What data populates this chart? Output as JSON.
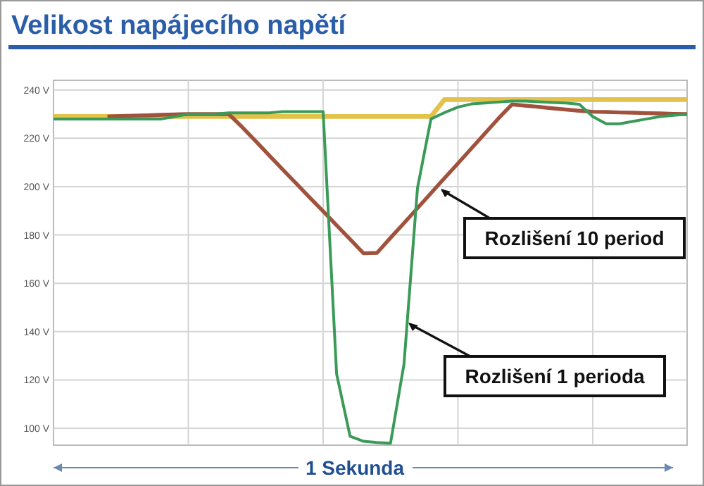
{
  "chart_data": {
    "type": "line",
    "title": "Velikost napájecího napětí",
    "xlabel": "1 Sekunda",
    "categories": [
      null,
      null,
      null,
      null,
      null,
      null,
      null,
      null,
      null,
      null,
      null,
      null,
      null,
      null,
      null,
      null,
      null,
      null,
      null,
      null,
      null,
      null,
      null,
      null,
      null,
      null,
      null,
      null,
      null,
      null,
      null,
      null,
      null,
      null,
      null,
      null,
      null,
      null,
      null,
      null,
      null,
      null,
      null,
      null,
      null,
      null,
      null,
      null
    ],
    "ylim": [
      93,
      244
    ],
    "yticks": [
      {
        "value": 100,
        "label": "100 V"
      },
      {
        "value": 120,
        "label": "120 V"
      },
      {
        "value": 140,
        "label": "140 V"
      },
      {
        "value": 160,
        "label": "160 V"
      },
      {
        "value": 180,
        "label": "180 V"
      },
      {
        "value": 200,
        "label": "200 V"
      },
      {
        "value": 220,
        "label": "220 V"
      },
      {
        "value": 240,
        "label": "240 V"
      }
    ],
    "tick_labels": "y",
    "grid": true,
    "marker": "none",
    "line_style": "solid",
    "series": [
      {
        "color": "#e2c24a",
        "values": [
          229,
          229,
          229,
          229,
          229,
          229,
          229,
          229,
          229,
          229,
          229,
          229,
          229,
          229,
          229,
          229,
          229,
          229,
          229,
          229,
          229,
          229,
          229,
          229,
          229,
          229,
          229,
          229,
          229,
          236,
          236,
          236,
          236,
          236,
          236,
          236,
          236,
          236,
          236,
          236,
          236,
          236,
          236,
          236,
          236,
          236,
          236,
          236
        ]
      },
      {
        "color": "#a0523c",
        "values": [
          null,
          null,
          null,
          null,
          229,
          229.2,
          229.4,
          229.5,
          229.7,
          229.9,
          230,
          230,
          230,
          230,
          224.6,
          218.8,
          212.9,
          207.1,
          201.3,
          195.5,
          189.8,
          184,
          178.2,
          172.4,
          172.6,
          178.8,
          184.9,
          191.1,
          197.3,
          203.5,
          209.6,
          215.8,
          222,
          228.2,
          234,
          233.5,
          233,
          232.4,
          231.9,
          231.4,
          231,
          230.9,
          230.7,
          230.6,
          230.4,
          230.3,
          230.1,
          230
        ]
      },
      {
        "color": "#3a9a58",
        "values": [
          228,
          228,
          228,
          228,
          228,
          228,
          228,
          228,
          228,
          229,
          230,
          230,
          230,
          230.5,
          230.5,
          230.5,
          230.5,
          231,
          231,
          231,
          231,
          122.5,
          96.7,
          94.6,
          94.1,
          93.8,
          126.6,
          199.4,
          228,
          230.6,
          232.9,
          234.2,
          234.6,
          235,
          235.4,
          235.4,
          235.1,
          234.8,
          234.6,
          234.1,
          229,
          226,
          226,
          227,
          228,
          229,
          229.5,
          230
        ]
      }
    ],
    "annotations": [
      "Rozlišení 10 period",
      "Rozlišení 1 perioda"
    ]
  }
}
